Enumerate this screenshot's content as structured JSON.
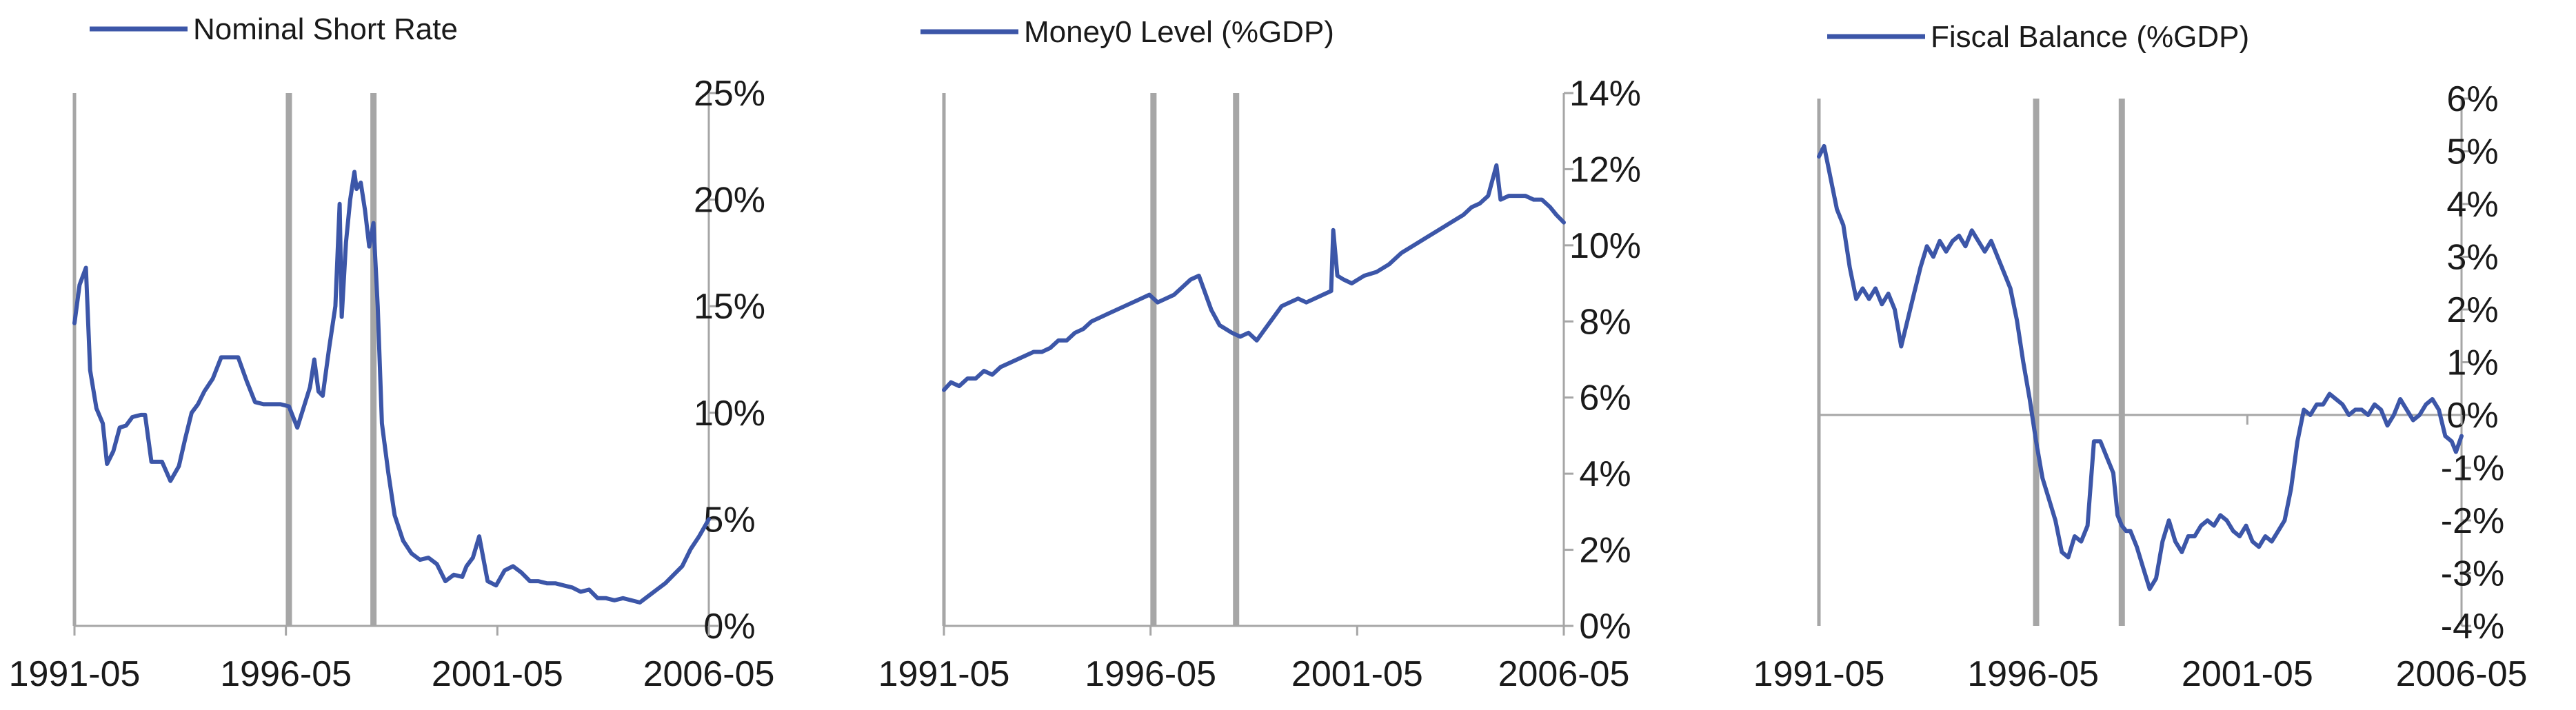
{
  "colors": {
    "series": "#3c56a8",
    "axis": "#a6a6a6",
    "recession": "#a6a6a6"
  },
  "chart_data": [
    {
      "type": "line",
      "legend": "Nominal Short Rate",
      "x_tick_labels": [
        "1991-05",
        "1996-05",
        "2001-05",
        "2006-05"
      ],
      "y_tick_labels": [
        "0%",
        "5%",
        "10%",
        "15%",
        "20%",
        "25%"
      ],
      "ylim": [
        0,
        25
      ],
      "xlim": [
        1991.33,
        2006.33
      ],
      "vertical_markers": [
        1996.4,
        1998.4
      ],
      "series": [
        {
          "x": [
            1991.33,
            1991.45,
            1991.6,
            1991.7,
            1991.85,
            1992.0,
            1992.1,
            1992.25,
            1992.4,
            1992.55,
            1992.7,
            1992.9,
            1993.0,
            1993.15,
            1993.4,
            1993.6,
            1993.8,
            1993.95,
            1994.1,
            1994.25,
            1994.4,
            1994.6,
            1994.8,
            1994.9,
            1995.0,
            1995.2,
            1995.4,
            1995.6,
            1995.8,
            1996.0,
            1996.2,
            1996.4,
            1996.6,
            1996.9,
            1997.0,
            1997.1,
            1997.2,
            1997.35,
            1997.5,
            1997.6,
            1997.65,
            1997.75,
            1997.85,
            1997.95,
            1998.0,
            1998.1,
            1998.2,
            1998.3,
            1998.4,
            1998.5,
            1998.6,
            1998.75,
            1998.9,
            1999.1,
            1999.3,
            1999.5,
            1999.7,
            1999.9,
            2000.1,
            2000.3,
            2000.5,
            2000.6,
            2000.75,
            2000.9,
            2001.1,
            2001.3,
            2001.5,
            2001.7,
            2001.9,
            2002.1,
            2002.3,
            2002.5,
            2002.7,
            2002.9,
            2003.1,
            2003.3,
            2003.5,
            2003.7,
            2003.9,
            2004.1,
            2004.3,
            2004.5,
            2004.7,
            2004.9,
            2005.1,
            2005.3,
            2005.5,
            2005.7,
            2005.9,
            2006.1,
            2006.33
          ],
          "y": [
            14.2,
            16,
            16.8,
            12,
            10.2,
            9.5,
            7.6,
            8.2,
            9.3,
            9.4,
            9.8,
            9.9,
            9.9,
            7.7,
            7.7,
            6.8,
            7.5,
            8.8,
            10,
            10.4,
            11,
            11.6,
            12.6,
            12.6,
            12.6,
            12.6,
            11.5,
            10.5,
            10.4,
            10.4,
            10.4,
            10.3,
            9.3,
            11.2,
            12.5,
            11,
            10.8,
            13,
            15,
            19.8,
            14.5,
            18,
            20,
            21.3,
            20.5,
            20.8,
            19.5,
            17.8,
            18.9,
            15,
            9.5,
            7.2,
            5.2,
            4,
            3.4,
            3.1,
            3.2,
            2.9,
            2.1,
            2.4,
            2.3,
            2.8,
            3.2,
            4.2,
            2.1,
            1.9,
            2.6,
            2.8,
            2.5,
            2.1,
            2.1,
            2,
            2,
            1.9,
            1.8,
            1.6,
            1.7,
            1.3,
            1.3,
            1.2,
            1.3,
            1.2,
            1.1,
            1.4,
            1.7,
            2,
            2.4,
            2.8,
            3.6,
            4.2,
            5.0
          ]
        }
      ]
    },
    {
      "type": "line",
      "legend": "Money0 Level (%GDP)",
      "x_tick_labels": [
        "1991-05",
        "1996-05",
        "2001-05",
        "2006-05"
      ],
      "y_tick_labels": [
        "0%",
        "2%",
        "4%",
        "6%",
        "8%",
        "10%",
        "12%",
        "14%"
      ],
      "ylim": [
        0,
        14
      ],
      "xlim": [
        1991.33,
        2006.33
      ],
      "vertical_markers": [
        1996.4,
        1998.4
      ],
      "series": [
        {
          "x": [
            1991.33,
            1991.5,
            1991.7,
            1991.9,
            1992.1,
            1992.3,
            1992.5,
            1992.7,
            1992.9,
            1993.1,
            1993.3,
            1993.5,
            1993.7,
            1993.9,
            1994.1,
            1994.3,
            1994.5,
            1994.7,
            1994.9,
            1995.1,
            1995.3,
            1995.5,
            1995.7,
            1995.9,
            1996.1,
            1996.3,
            1996.5,
            1996.7,
            1996.9,
            1997.1,
            1997.3,
            1997.5,
            1997.7,
            1997.8,
            1998.0,
            1998.3,
            1998.5,
            1998.7,
            1998.9,
            1999.1,
            1999.3,
            1999.5,
            1999.7,
            1999.9,
            2000.1,
            2000.3,
            2000.5,
            2000.7,
            2000.75,
            2000.85,
            2001.0,
            2001.2,
            2001.5,
            2001.8,
            2002.1,
            2002.4,
            2002.7,
            2003.0,
            2003.3,
            2003.6,
            2003.9,
            2004.1,
            2004.3,
            2004.5,
            2004.7,
            2004.8,
            2005.0,
            2005.2,
            2005.4,
            2005.6,
            2005.8,
            2006.0,
            2006.15,
            2006.33
          ],
          "y": [
            6.2,
            6.4,
            6.3,
            6.5,
            6.5,
            6.7,
            6.6,
            6.8,
            6.9,
            7.0,
            7.1,
            7.2,
            7.2,
            7.3,
            7.5,
            7.5,
            7.7,
            7.8,
            8.0,
            8.1,
            8.2,
            8.3,
            8.4,
            8.5,
            8.6,
            8.7,
            8.5,
            8.6,
            8.7,
            8.9,
            9.1,
            9.2,
            8.6,
            8.3,
            7.9,
            7.7,
            7.6,
            7.7,
            7.5,
            7.8,
            8.1,
            8.4,
            8.5,
            8.6,
            8.5,
            8.6,
            8.7,
            8.8,
            10.4,
            9.2,
            9.1,
            9.0,
            9.2,
            9.3,
            9.5,
            9.8,
            10.0,
            10.2,
            10.4,
            10.6,
            10.8,
            11.0,
            11.1,
            11.3,
            12.1,
            11.2,
            11.3,
            11.3,
            11.3,
            11.2,
            11.2,
            11.0,
            10.8,
            10.6
          ]
        }
      ]
    },
    {
      "type": "line",
      "legend": "Fiscal Balance (%GDP)",
      "x_tick_labels": [
        "1991-05",
        "1996-05",
        "2001-05",
        "2006-05"
      ],
      "y_tick_labels": [
        "-4%",
        "-3%",
        "-2%",
        "-1%",
        "0%",
        "1%",
        "2%",
        "3%",
        "4%",
        "5%",
        "6%"
      ],
      "ylim": [
        -4,
        6
      ],
      "xlim": [
        1991.33,
        2006.33
      ],
      "vertical_markers": [
        1996.4,
        1998.4
      ],
      "series": [
        {
          "x": [
            1991.33,
            1991.45,
            1991.6,
            1991.75,
            1991.9,
            1992.05,
            1992.2,
            1992.35,
            1992.5,
            1992.65,
            1992.8,
            1992.95,
            1993.1,
            1993.25,
            1993.4,
            1993.55,
            1993.7,
            1993.85,
            1994.0,
            1994.15,
            1994.3,
            1994.45,
            1994.6,
            1994.75,
            1994.9,
            1995.05,
            1995.2,
            1995.35,
            1995.5,
            1995.65,
            1995.8,
            1995.95,
            1996.1,
            1996.25,
            1996.4,
            1996.55,
            1996.7,
            1996.85,
            1997.0,
            1997.15,
            1997.3,
            1997.45,
            1997.6,
            1997.75,
            1997.9,
            1998.05,
            1998.2,
            1998.3,
            1998.4,
            1998.5,
            1998.6,
            1998.75,
            1998.9,
            1999.05,
            1999.2,
            1999.35,
            1999.5,
            1999.65,
            1999.8,
            1999.95,
            2000.1,
            2000.25,
            2000.4,
            2000.55,
            2000.7,
            2000.85,
            2001.0,
            2001.15,
            2001.3,
            2001.45,
            2001.6,
            2001.75,
            2001.9,
            2002.05,
            2002.2,
            2002.35,
            2002.5,
            2002.65,
            2002.8,
            2002.95,
            2003.1,
            2003.25,
            2003.4,
            2003.55,
            2003.7,
            2003.85,
            2004.0,
            2004.15,
            2004.3,
            2004.45,
            2004.6,
            2004.75,
            2004.9,
            2005.05,
            2005.2,
            2005.35,
            2005.5,
            2005.65,
            2005.8,
            2005.95,
            2006.1,
            2006.2,
            2006.33
          ],
          "y": [
            4.9,
            5.1,
            4.5,
            3.9,
            3.6,
            2.8,
            2.2,
            2.4,
            2.2,
            2.4,
            2.1,
            2.3,
            2.0,
            1.3,
            1.8,
            2.3,
            2.8,
            3.2,
            3.0,
            3.3,
            3.1,
            3.3,
            3.4,
            3.2,
            3.5,
            3.3,
            3.1,
            3.3,
            3.0,
            2.7,
            2.4,
            1.8,
            1.0,
            0.3,
            -0.5,
            -1.2,
            -1.6,
            -2.0,
            -2.6,
            -2.7,
            -2.3,
            -2.4,
            -2.1,
            -0.5,
            -0.5,
            -0.8,
            -1.1,
            -1.9,
            -2.1,
            -2.2,
            -2.2,
            -2.5,
            -2.9,
            -3.3,
            -3.1,
            -2.4,
            -2.0,
            -2.4,
            -2.6,
            -2.3,
            -2.3,
            -2.1,
            -2.0,
            -2.1,
            -1.9,
            -2.0,
            -2.2,
            -2.3,
            -2.1,
            -2.4,
            -2.5,
            -2.3,
            -2.4,
            -2.2,
            -2.0,
            -1.4,
            -0.5,
            0.1,
            0.0,
            0.2,
            0.2,
            0.4,
            0.3,
            0.2,
            0.0,
            0.1,
            0.1,
            0.0,
            0.2,
            0.1,
            -0.2,
            0.0,
            0.3,
            0.1,
            -0.1,
            0.0,
            0.2,
            0.3,
            0.1,
            -0.4,
            -0.5,
            -0.7,
            -0.4
          ]
        }
      ]
    }
  ]
}
